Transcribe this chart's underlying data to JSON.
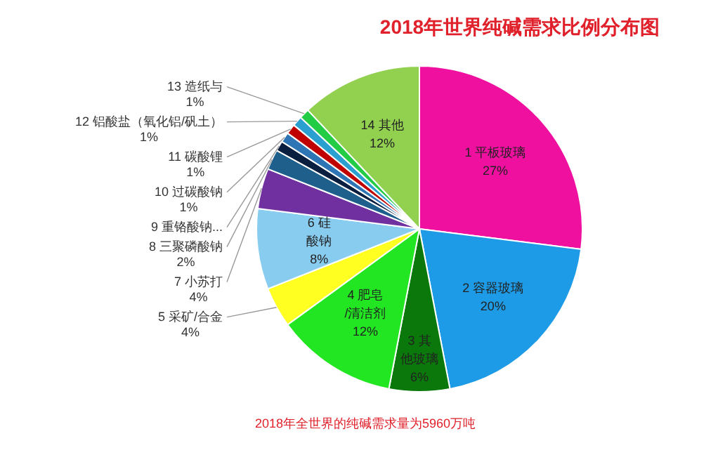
{
  "chart_data": {
    "type": "pie",
    "title": "2018年世界纯碱需求比例分布图",
    "categories": [
      "1 平板玻璃",
      "2 容器玻璃",
      "3 其他玻璃",
      "4 肥皂/清洁剂",
      "5 采矿/合金",
      "6 硅酸钠",
      "7 小苏打",
      "8 三聚磷酸钠",
      "9 重铬酸钠...",
      "10 过碳酸钠",
      "11 碳酸锂",
      "12 铝酸盐（氧化铝/矾土）",
      "13 造纸与",
      "14 其他"
    ],
    "values": [
      27,
      20,
      6,
      12,
      4,
      8,
      4,
      2,
      1,
      1,
      1,
      1,
      1,
      12
    ],
    "value_labels": [
      "27%",
      "20%",
      "6%",
      "12%",
      "4%",
      "8%",
      "4%",
      "2%",
      null,
      "1%",
      "1%",
      "1%",
      "1%",
      "12%"
    ],
    "colors": [
      "#f010a0",
      "#1e9be6",
      "#0a780a",
      "#22e622",
      "#ffff22",
      "#88ccf0",
      "#7030a0",
      "#1f5f8b",
      "#0a1f40",
      "#2e75b6",
      "#c00000",
      "#2aa0d0",
      "#22cc44",
      "#92d050"
    ],
    "legend": false,
    "annotations": [
      "2018年全世界的纯碱需求量为5960万吨"
    ]
  }
}
